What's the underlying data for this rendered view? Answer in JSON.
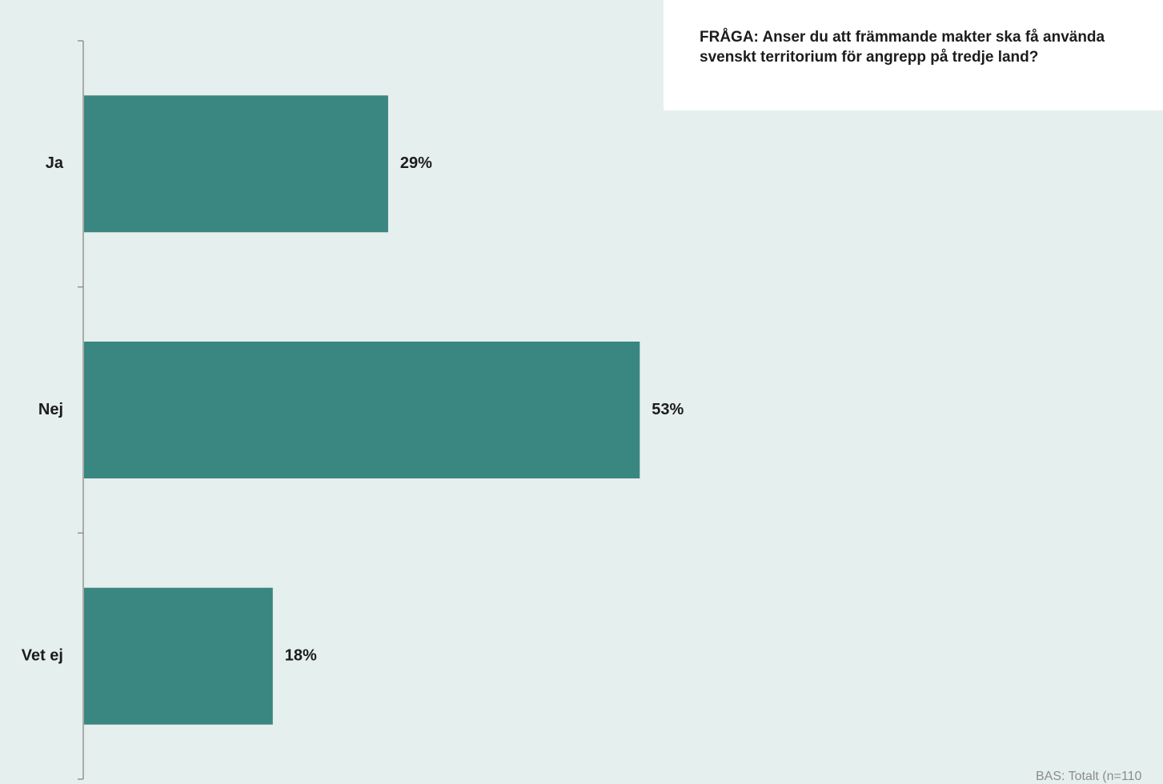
{
  "question": {
    "text": "FRÅGA: Anser du att främmande makter ska få använda svenskt territorium för angrepp på tredje land?"
  },
  "footnote": {
    "text": "BAS: Totalt (n=110"
  },
  "colors": {
    "background": "#e5efee",
    "bar": "#3a8680",
    "axis": "#7f7f7f",
    "text": "#1c1c1c"
  },
  "chart_data": {
    "type": "bar",
    "orientation": "horizontal",
    "categories": [
      "Ja",
      "Nej",
      "Vet ej"
    ],
    "values": [
      29,
      53,
      18
    ],
    "value_labels": [
      "29%",
      "53%",
      "18%"
    ],
    "unit": "%",
    "title": "",
    "xlabel": "",
    "ylabel": "",
    "grid": false,
    "legend": "none"
  }
}
